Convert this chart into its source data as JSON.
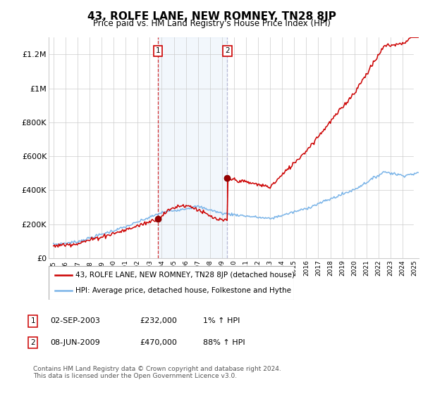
{
  "title": "43, ROLFE LANE, NEW ROMNEY, TN28 8JP",
  "subtitle": "Price paid vs. HM Land Registry's House Price Index (HPI)",
  "ylim": [
    0,
    1300000
  ],
  "yticks": [
    0,
    200000,
    400000,
    600000,
    800000,
    1000000,
    1200000
  ],
  "ytick_labels": [
    "£0",
    "£200K",
    "£400K",
    "£600K",
    "£800K",
    "£1M",
    "£1.2M"
  ],
  "x_start_year": 1995,
  "x_end_year": 2025,
  "hpi_color": "#7ab4e8",
  "price_color": "#cc0000",
  "sale1_year": 2003.67,
  "sale1_price": 232000,
  "sale2_year": 2009.44,
  "sale2_price": 470000,
  "legend_line1": "43, ROLFE LANE, NEW ROMNEY, TN28 8JP (detached house)",
  "legend_line2": "HPI: Average price, detached house, Folkestone and Hythe",
  "table_row1": [
    "1",
    "02-SEP-2003",
    "£232,000",
    "1% ↑ HPI"
  ],
  "table_row2": [
    "2",
    "08-JUN-2009",
    "£470,000",
    "88% ↑ HPI"
  ],
  "footer": "Contains HM Land Registry data © Crown copyright and database right 2024.\nThis data is licensed under the Open Government Licence v3.0.",
  "bg_color": "#ffffff",
  "grid_color": "#cccccc",
  "shade_color": "#ddeeff"
}
